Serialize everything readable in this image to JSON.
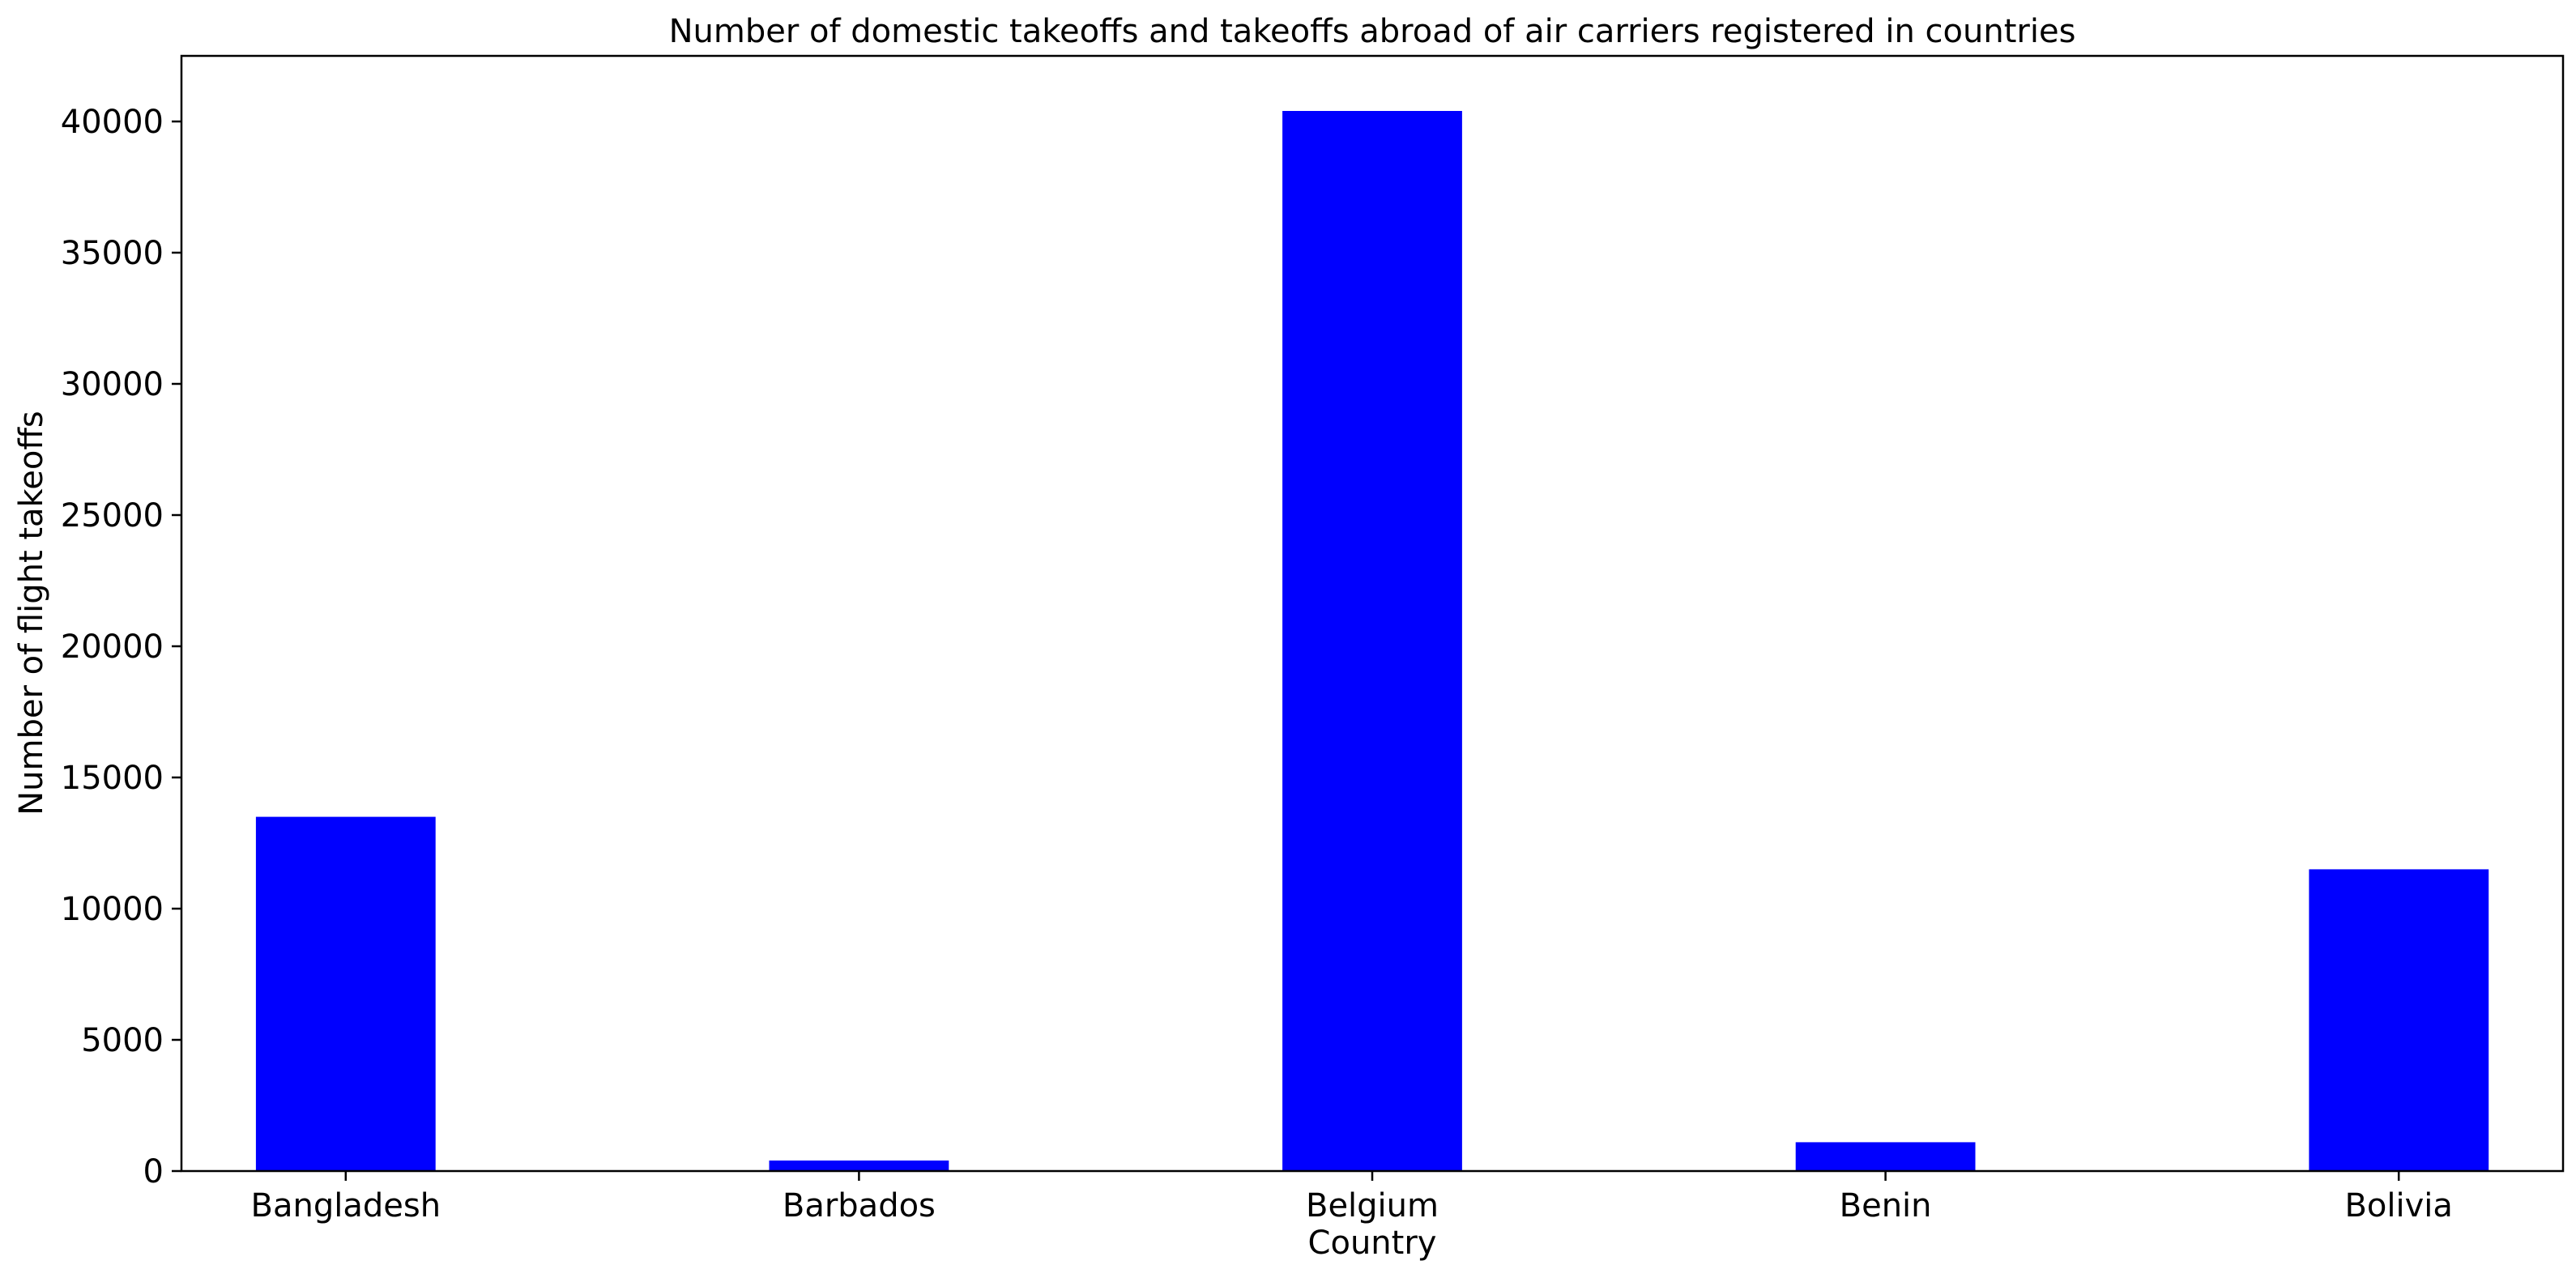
{
  "chart_data": {
    "type": "bar",
    "title": "Number of domestic takeoffs and takeoffs abroad of air carriers registered in countries",
    "xlabel": "Country",
    "ylabel": "Number of flight takeoffs",
    "categories": [
      "Bangladesh",
      "Barbados",
      "Belgium",
      "Benin",
      "Bolivia"
    ],
    "values": [
      13500,
      400,
      40400,
      1100,
      11500
    ],
    "ylim": [
      0,
      42500
    ],
    "yticks": [
      0,
      5000,
      10000,
      15000,
      20000,
      25000,
      30000,
      35000,
      40000
    ],
    "grid": false,
    "legend": "none",
    "bar_color": "#0000ff"
  }
}
